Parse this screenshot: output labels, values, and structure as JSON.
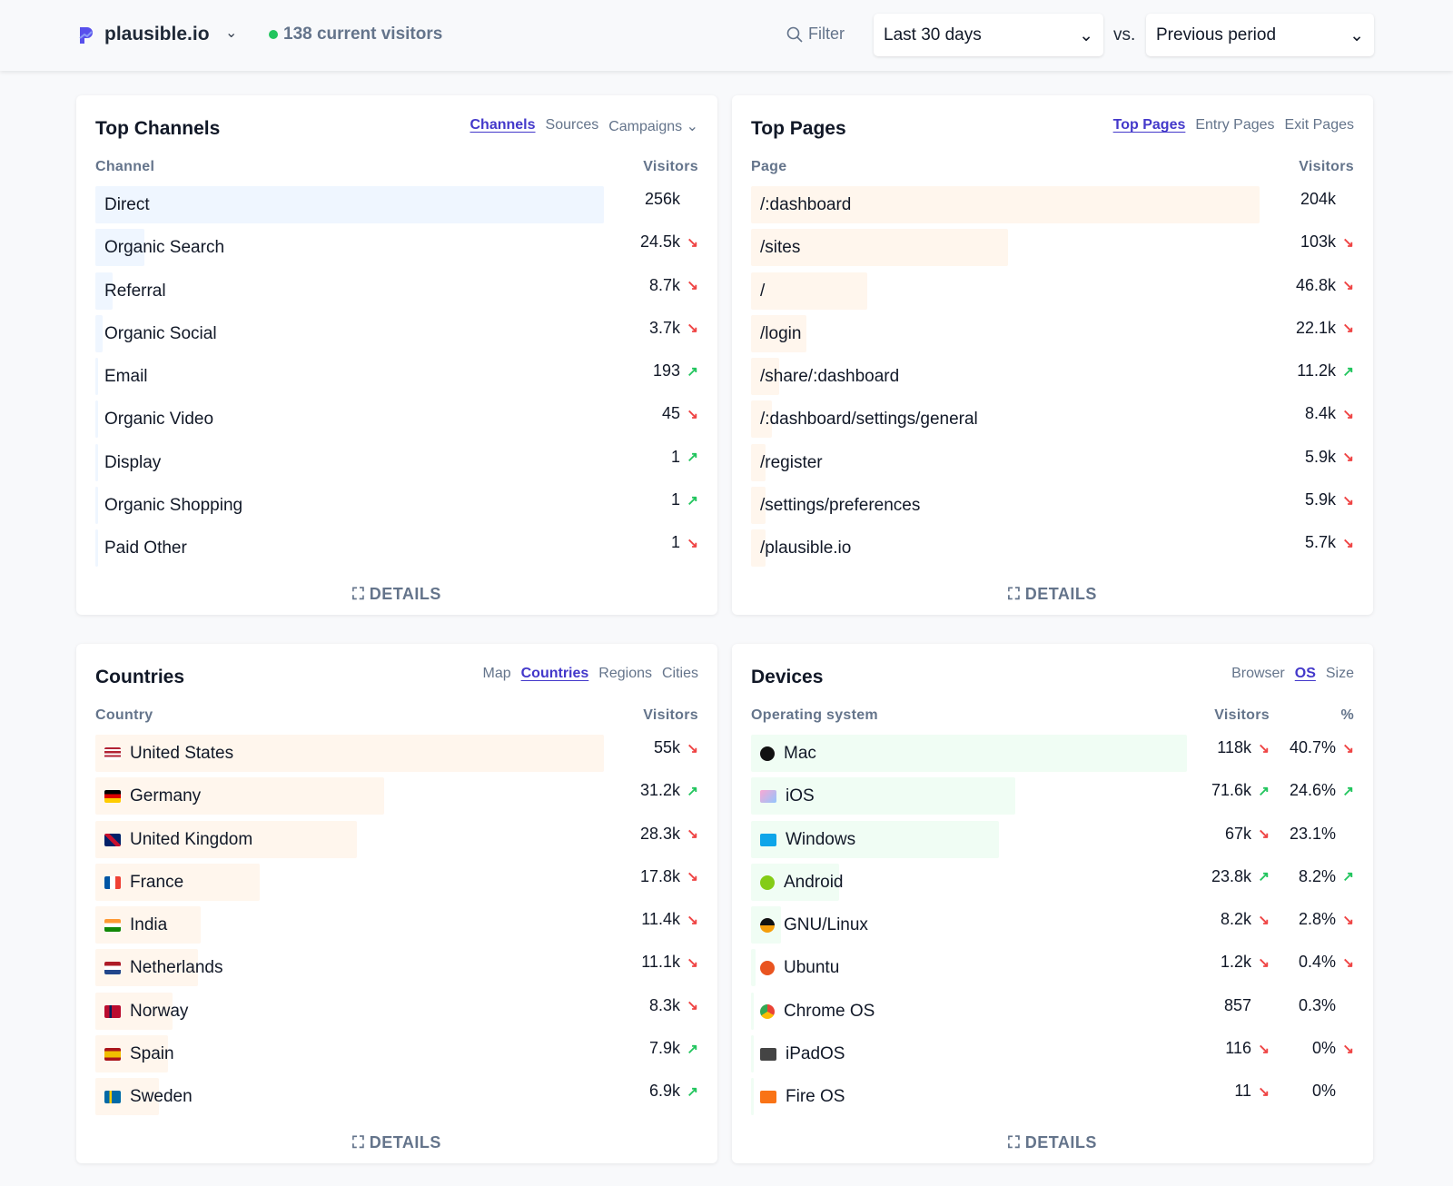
{
  "header": {
    "site": "plausible.io",
    "current_visitors": "138 current visitors",
    "filter_label": "Filter",
    "period": "Last 30 days",
    "vs": "vs.",
    "comparison": "Previous period",
    "brand_color": "#5850ec"
  },
  "details_label": "DETAILS",
  "cards": [
    {
      "id": "channels",
      "title": "Top Channels",
      "tabs": [
        {
          "label": "Channels",
          "active": true
        },
        {
          "label": "Sources"
        },
        {
          "label": "Campaigns ⌄"
        }
      ],
      "bar_color": "#eff6ff",
      "columns": [
        "Channel",
        "Visitors"
      ],
      "rows": [
        {
          "label": "Direct",
          "visitors": "256k",
          "trend": ""
        },
        {
          "label": "Organic Search",
          "visitors": "24.5k",
          "trend": "down"
        },
        {
          "label": "Referral",
          "visitors": "8.7k",
          "trend": "down"
        },
        {
          "label": "Organic Social",
          "visitors": "3.7k",
          "trend": "down"
        },
        {
          "label": "Email",
          "visitors": "193",
          "trend": "up"
        },
        {
          "label": "Organic Video",
          "visitors": "45",
          "trend": "down"
        },
        {
          "label": "Display",
          "visitors": "1",
          "trend": "up"
        },
        {
          "label": "Organic Shopping",
          "visitors": "1",
          "trend": "up"
        },
        {
          "label": "Paid Other",
          "visitors": "1",
          "trend": "down"
        }
      ]
    },
    {
      "id": "pages",
      "title": "Top Pages",
      "tabs": [
        {
          "label": "Top Pages",
          "active": true
        },
        {
          "label": "Entry Pages"
        },
        {
          "label": "Exit Pages"
        }
      ],
      "bar_color": "#fff6ed",
      "columns": [
        "Page",
        "Visitors"
      ],
      "rows": [
        {
          "label": "/:dashboard",
          "visitors": "204k",
          "trend": ""
        },
        {
          "label": "/sites",
          "visitors": "103k",
          "trend": "down"
        },
        {
          "label": "/",
          "visitors": "46.8k",
          "trend": "down"
        },
        {
          "label": "/login",
          "visitors": "22.1k",
          "trend": "down"
        },
        {
          "label": "/share/:dashboard",
          "visitors": "11.2k",
          "trend": "up"
        },
        {
          "label": "/:dashboard/settings/general",
          "visitors": "8.4k",
          "trend": "down"
        },
        {
          "label": "/register",
          "visitors": "5.9k",
          "trend": "down"
        },
        {
          "label": "/settings/preferences",
          "visitors": "5.9k",
          "trend": "down"
        },
        {
          "label": "/plausible.io",
          "visitors": "5.7k",
          "trend": "down"
        }
      ]
    },
    {
      "id": "countries",
      "title": "Countries",
      "tabs": [
        {
          "label": "Map"
        },
        {
          "label": "Countries",
          "active": true
        },
        {
          "label": "Regions"
        },
        {
          "label": "Cities"
        }
      ],
      "bar_color": "#fff6ed",
      "columns": [
        "Country",
        "Visitors"
      ],
      "rows": [
        {
          "label": "United States",
          "visitors": "55k",
          "trend": "down",
          "icon": "us-flag-icon"
        },
        {
          "label": "Germany",
          "visitors": "31.2k",
          "trend": "up",
          "icon": "de-flag-icon"
        },
        {
          "label": "United Kingdom",
          "visitors": "28.3k",
          "trend": "down",
          "icon": "gb-flag-icon"
        },
        {
          "label": "France",
          "visitors": "17.8k",
          "trend": "down",
          "icon": "fr-flag-icon"
        },
        {
          "label": "India",
          "visitors": "11.4k",
          "trend": "down",
          "icon": "in-flag-icon"
        },
        {
          "label": "Netherlands",
          "visitors": "11.1k",
          "trend": "down",
          "icon": "nl-flag-icon"
        },
        {
          "label": "Norway",
          "visitors": "8.3k",
          "trend": "down",
          "icon": "no-flag-icon"
        },
        {
          "label": "Spain",
          "visitors": "7.9k",
          "trend": "up",
          "icon": "es-flag-icon"
        },
        {
          "label": "Sweden",
          "visitors": "6.9k",
          "trend": "up",
          "icon": "se-flag-icon"
        }
      ]
    },
    {
      "id": "devices",
      "title": "Devices",
      "tabs": [
        {
          "label": "Browser"
        },
        {
          "label": "OS",
          "active": true
        },
        {
          "label": "Size"
        }
      ],
      "bar_color": "#f0fdf4",
      "columns": [
        "Operating system",
        "Visitors",
        "%"
      ],
      "rows": [
        {
          "label": "Mac",
          "visitors": "118k",
          "trend": "down",
          "pct": "40.7%",
          "pct_trend": "down",
          "icon": "apple-icon"
        },
        {
          "label": "iOS",
          "visitors": "71.6k",
          "trend": "up",
          "pct": "24.6%",
          "pct_trend": "up",
          "icon": "ios-icon"
        },
        {
          "label": "Windows",
          "visitors": "67k",
          "trend": "down",
          "pct": "23.1%",
          "pct_trend": "",
          "icon": "windows-icon"
        },
        {
          "label": "Android",
          "visitors": "23.8k",
          "trend": "up",
          "pct": "8.2%",
          "pct_trend": "up",
          "icon": "android-icon"
        },
        {
          "label": "GNU/Linux",
          "visitors": "8.2k",
          "trend": "down",
          "pct": "2.8%",
          "pct_trend": "down",
          "icon": "linux-icon"
        },
        {
          "label": "Ubuntu",
          "visitors": "1.2k",
          "trend": "down",
          "pct": "0.4%",
          "pct_trend": "down",
          "icon": "ubuntu-icon"
        },
        {
          "label": "Chrome OS",
          "visitors": "857",
          "trend": "",
          "pct": "0.3%",
          "pct_trend": "",
          "icon": "chrome-icon"
        },
        {
          "label": "iPadOS",
          "visitors": "116",
          "trend": "down",
          "pct": "0%",
          "pct_trend": "down",
          "icon": "ipados-icon"
        },
        {
          "label": "Fire OS",
          "visitors": "11",
          "trend": "down",
          "pct": "0%",
          "pct_trend": "",
          "icon": "fireos-icon"
        }
      ]
    }
  ]
}
